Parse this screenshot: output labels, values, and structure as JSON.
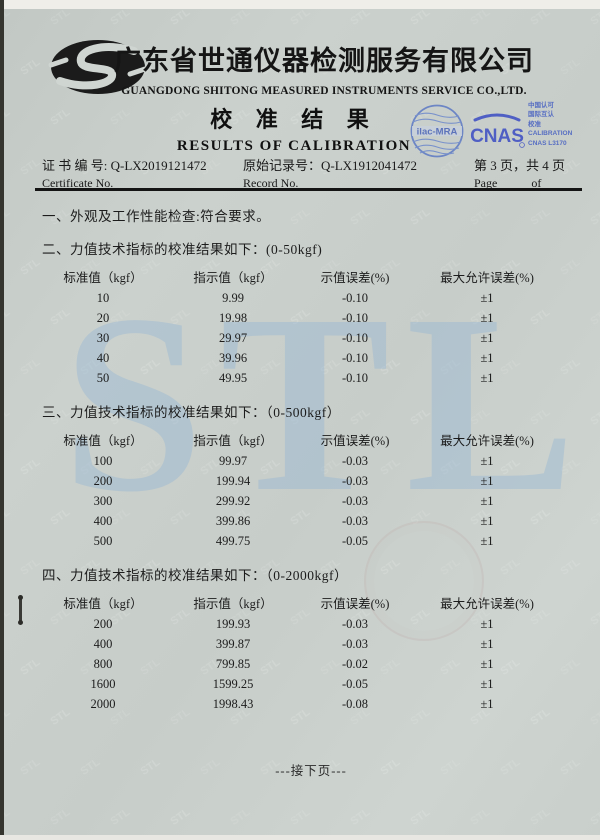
{
  "header": {
    "company_cn": "广东省世通仪器检测服务有限公司",
    "company_en": "GUANGDONG SHITONG MEASURED INSTRUMENTS SERVICE CO.,LTD.",
    "title_cn": "校 准 结 果",
    "title_en": "RESULTS OF CALIBRATION",
    "seals": {
      "ilac_label": "ilac-MRA",
      "cnas_label": "CNAS",
      "accreditation_lines": [
        "中国认可",
        "国际互认",
        "校准",
        "CALIBRATION",
        "CNAS L3170"
      ]
    }
  },
  "certificate_bar": {
    "cert_label_cn": "证 书 编 号: ",
    "cert_no": "Q-LX2019121472",
    "cert_label_en": "Certificate No.",
    "record_label_cn": "原始记录号：",
    "record_no": "Q-LX1912041472",
    "record_label_en": "Record No.",
    "page_cn": "第 3 页，共 4 页",
    "page_label_en": "Page",
    "of_label_en": "of"
  },
  "sections": {
    "s1": "一、外观及工作性能检查:符合要求。",
    "s2": "二、力值技术指标的校准结果如下：(0-50kgf)",
    "s3": "三、力值技术指标的校准结果如下：（0-500kgf）",
    "s4": "四、力值技术指标的校准结果如下：（0-2000kgf）"
  },
  "table_headers": [
    "标准值（kgf）",
    "指示值（kgf）",
    "示值误差(%)",
    "最大允许误差(%)"
  ],
  "tables": {
    "t1": {
      "rows": [
        [
          "10",
          "9.99",
          "-0.10",
          "±1"
        ],
        [
          "20",
          "19.98",
          "-0.10",
          "±1"
        ],
        [
          "30",
          "29.97",
          "-0.10",
          "±1"
        ],
        [
          "40",
          "39.96",
          "-0.10",
          "±1"
        ],
        [
          "50",
          "49.95",
          "-0.10",
          "±1"
        ]
      ]
    },
    "t2": {
      "rows": [
        [
          "100",
          "99.97",
          "-0.03",
          "±1"
        ],
        [
          "200",
          "199.94",
          "-0.03",
          "±1"
        ],
        [
          "300",
          "299.92",
          "-0.03",
          "±1"
        ],
        [
          "400",
          "399.86",
          "-0.03",
          "±1"
        ],
        [
          "500",
          "499.75",
          "-0.05",
          "±1"
        ]
      ]
    },
    "t3": {
      "rows": [
        [
          "200",
          "199.93",
          "-0.03",
          "±1"
        ],
        [
          "400",
          "399.87",
          "-0.03",
          "±1"
        ],
        [
          "800",
          "799.85",
          "-0.02",
          "±1"
        ],
        [
          "1600",
          "1599.25",
          "-0.05",
          "±1"
        ],
        [
          "2000",
          "1998.43",
          "-0.08",
          "±1"
        ]
      ]
    }
  },
  "footer": {
    "continue_text": "---接下页---"
  },
  "watermark": {
    "big_text": "STL",
    "texture_text": "STL"
  },
  "colors": {
    "seal_blue": "#4353c4",
    "paper": "#c9cfcb",
    "watermark_blue": "#94b6d4"
  }
}
